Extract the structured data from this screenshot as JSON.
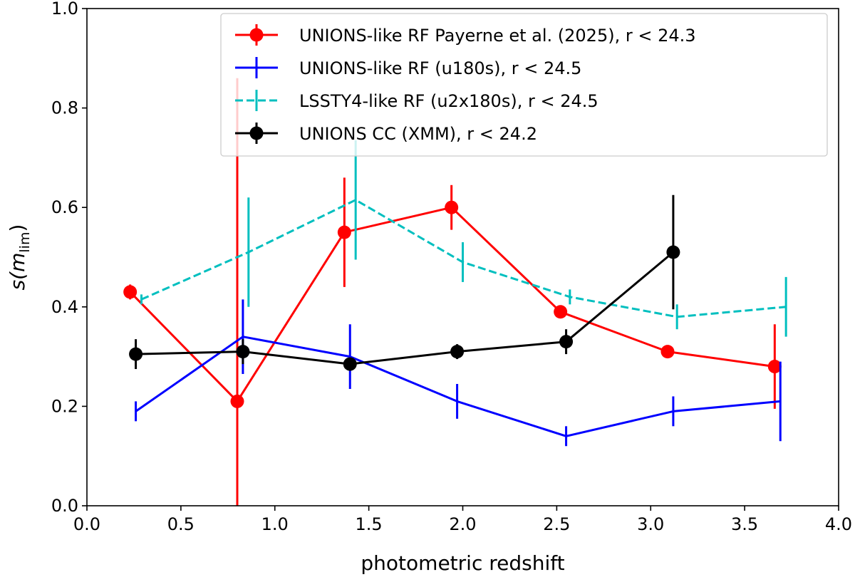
{
  "chart_data": {
    "type": "line",
    "xlabel": "photometric redshift",
    "ylabel": "s(m",
    "ylabel_sub": "lim",
    "ylabel_close": ")",
    "xlim": [
      0.0,
      4.0
    ],
    "ylim": [
      0.0,
      1.0
    ],
    "x_ticks": [
      "0.0",
      "0.5",
      "1.0",
      "1.5",
      "2.0",
      "2.5",
      "3.0",
      "3.5",
      "4.0"
    ],
    "y_ticks": [
      "0.0",
      "0.2",
      "0.4",
      "0.6",
      "0.8",
      "1.0"
    ],
    "legend_position": "top-right",
    "series": [
      {
        "name": "UNIONS-like RF Payerne et al. (2025), r < 24.3",
        "color": "#ff0000",
        "linestyle": "solid",
        "marker": "circle",
        "x": [
          0.23,
          0.8,
          1.37,
          1.94,
          2.52,
          3.09,
          3.66
        ],
        "y": [
          0.43,
          0.21,
          0.55,
          0.6,
          0.39,
          0.31,
          0.28
        ],
        "yerr": [
          0.015,
          0.65,
          0.11,
          0.045,
          0.01,
          0.01,
          0.085
        ]
      },
      {
        "name": "UNIONS-like RF (u180s), r < 24.5",
        "color": "#0000ff",
        "linestyle": "solid",
        "marker": "none",
        "x": [
          0.26,
          0.83,
          1.4,
          1.97,
          2.55,
          3.12,
          3.69
        ],
        "y": [
          0.19,
          0.34,
          0.3,
          0.21,
          0.14,
          0.19,
          0.21
        ],
        "yerr": [
          0.02,
          0.075,
          0.065,
          0.035,
          0.02,
          0.03,
          0.08
        ]
      },
      {
        "name": "LSSTY4-like RF (u2x180s), r < 24.5",
        "color": "#00bfbf",
        "linestyle": "dashed",
        "marker": "none",
        "x": [
          0.29,
          0.86,
          1.43,
          2.0,
          2.57,
          3.14,
          3.72
        ],
        "y": [
          0.415,
          0.51,
          0.615,
          0.49,
          0.42,
          0.38,
          0.4
        ],
        "yerr": [
          0.01,
          0.11,
          0.12,
          0.04,
          0.015,
          0.025,
          0.06
        ]
      },
      {
        "name": "UNIONS CC (XMM), r < 24.2",
        "color": "#000000",
        "linestyle": "solid",
        "marker": "circle",
        "x": [
          0.26,
          0.83,
          1.4,
          1.97,
          2.55,
          3.12
        ],
        "y": [
          0.305,
          0.31,
          0.285,
          0.31,
          0.33,
          0.51
        ],
        "yerr": [
          0.03,
          0.025,
          0.01,
          0.015,
          0.025,
          0.115
        ]
      }
    ]
  }
}
